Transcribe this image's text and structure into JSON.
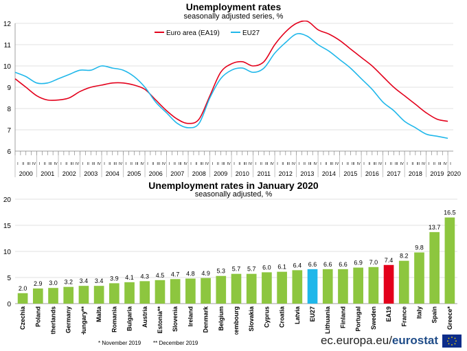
{
  "top": {
    "title": "Unemployment rates",
    "subtitle": "seasonally adjusted series, %"
  },
  "bottom": {
    "title": "Unemployment rates in January 2020",
    "subtitle": "seasonally adjusted, %"
  },
  "footnotes": {
    "nov": "*   November 2019",
    "dec": "** December 2019"
  },
  "brand": {
    "prefix": "ec.europa.eu/",
    "name": "eurostat"
  },
  "colors": {
    "ea19": "#e3001b",
    "eu27": "#1fb7ea",
    "bar": "#8dc63f",
    "eu27_bar": "#1fb7ea",
    "ea19_bar": "#e3001b"
  },
  "chart_data": [
    {
      "type": "line",
      "title": "Unemployment rates",
      "subtitle": "seasonally adjusted series, %",
      "ylim": [
        6,
        12
      ],
      "yticks": [
        6,
        7,
        8,
        9,
        10,
        11,
        12
      ],
      "x_years": [
        "2000",
        "2001",
        "2002",
        "2003",
        "2004",
        "2005",
        "2006",
        "2007",
        "2008",
        "2009",
        "2010",
        "2011",
        "2012",
        "2013",
        "2014",
        "2015",
        "2016",
        "2017",
        "2018",
        "2019",
        "2020"
      ],
      "quarter_labels": [
        "I",
        "II",
        "III",
        "IV"
      ],
      "legend_position": "top-center",
      "series": [
        {
          "name": "Euro area (EA19)",
          "color": "#e3001b",
          "points": [
            [
              2000.0,
              9.4
            ],
            [
              2000.5,
              9.0
            ],
            [
              2001.0,
              8.6
            ],
            [
              2001.5,
              8.4
            ],
            [
              2002.0,
              8.4
            ],
            [
              2002.5,
              8.5
            ],
            [
              2003.0,
              8.8
            ],
            [
              2003.5,
              9.0
            ],
            [
              2004.0,
              9.1
            ],
            [
              2004.5,
              9.2
            ],
            [
              2005.0,
              9.2
            ],
            [
              2005.5,
              9.1
            ],
            [
              2006.0,
              8.9
            ],
            [
              2006.5,
              8.4
            ],
            [
              2007.0,
              7.9
            ],
            [
              2007.5,
              7.5
            ],
            [
              2008.0,
              7.3
            ],
            [
              2008.5,
              7.5
            ],
            [
              2009.0,
              8.6
            ],
            [
              2009.5,
              9.7
            ],
            [
              2010.0,
              10.1
            ],
            [
              2010.5,
              10.2
            ],
            [
              2011.0,
              10.0
            ],
            [
              2011.5,
              10.2
            ],
            [
              2012.0,
              11.0
            ],
            [
              2012.5,
              11.6
            ],
            [
              2013.0,
              12.0
            ],
            [
              2013.5,
              12.1
            ],
            [
              2014.0,
              11.7
            ],
            [
              2014.5,
              11.5
            ],
            [
              2015.0,
              11.2
            ],
            [
              2015.5,
              10.8
            ],
            [
              2016.0,
              10.4
            ],
            [
              2016.5,
              10.0
            ],
            [
              2017.0,
              9.5
            ],
            [
              2017.5,
              9.0
            ],
            [
              2018.0,
              8.6
            ],
            [
              2018.5,
              8.2
            ],
            [
              2019.0,
              7.8
            ],
            [
              2019.5,
              7.5
            ],
            [
              2020.0,
              7.4
            ]
          ]
        },
        {
          "name": "EU27",
          "color": "#1fb7ea",
          "points": [
            [
              2000.0,
              9.7
            ],
            [
              2000.5,
              9.5
            ],
            [
              2001.0,
              9.2
            ],
            [
              2001.5,
              9.2
            ],
            [
              2002.0,
              9.4
            ],
            [
              2002.5,
              9.6
            ],
            [
              2003.0,
              9.8
            ],
            [
              2003.5,
              9.8
            ],
            [
              2004.0,
              10.0
            ],
            [
              2004.5,
              9.9
            ],
            [
              2005.0,
              9.8
            ],
            [
              2005.5,
              9.5
            ],
            [
              2006.0,
              9.0
            ],
            [
              2006.5,
              8.3
            ],
            [
              2007.0,
              7.8
            ],
            [
              2007.5,
              7.3
            ],
            [
              2008.0,
              7.1
            ],
            [
              2008.5,
              7.3
            ],
            [
              2009.0,
              8.5
            ],
            [
              2009.5,
              9.4
            ],
            [
              2010.0,
              9.8
            ],
            [
              2010.5,
              9.9
            ],
            [
              2011.0,
              9.7
            ],
            [
              2011.5,
              9.9
            ],
            [
              2012.0,
              10.6
            ],
            [
              2012.5,
              11.1
            ],
            [
              2013.0,
              11.5
            ],
            [
              2013.5,
              11.4
            ],
            [
              2014.0,
              11.0
            ],
            [
              2014.5,
              10.7
            ],
            [
              2015.0,
              10.3
            ],
            [
              2015.5,
              9.9
            ],
            [
              2016.0,
              9.4
            ],
            [
              2016.5,
              8.9
            ],
            [
              2017.0,
              8.3
            ],
            [
              2017.5,
              7.9
            ],
            [
              2018.0,
              7.4
            ],
            [
              2018.5,
              7.1
            ],
            [
              2019.0,
              6.8
            ],
            [
              2019.5,
              6.7
            ],
            [
              2020.0,
              6.6
            ]
          ]
        }
      ]
    },
    {
      "type": "bar",
      "title": "Unemployment rates in January 2020",
      "subtitle": "seasonally adjusted, %",
      "ylim": [
        0,
        20
      ],
      "yticks": [
        0,
        5,
        10,
        15,
        20
      ],
      "categories": [
        "Czechia",
        "Poland",
        "Netherlands",
        "Germany",
        "Hungary**",
        "Malta",
        "Romania",
        "Bulgaria",
        "Austria",
        "Estonia**",
        "Slovenia",
        "Ireland",
        "Denmark",
        "Belgium",
        "Luxembourg",
        "Slovakia",
        "Cyprus",
        "Croatia",
        "Latvia",
        "EU27",
        "Lithuania",
        "Finland",
        "Portugal",
        "Sweden",
        "EA19",
        "France",
        "Italy",
        "Spain",
        "Greece*"
      ],
      "values": [
        2.0,
        2.9,
        3.0,
        3.2,
        3.4,
        3.4,
        3.9,
        4.1,
        4.3,
        4.5,
        4.7,
        4.8,
        4.9,
        5.3,
        5.7,
        5.7,
        6.0,
        6.1,
        6.4,
        6.6,
        6.6,
        6.6,
        6.9,
        7.0,
        7.4,
        8.2,
        9.8,
        13.7,
        16.5
      ],
      "value_labels": [
        "2.0",
        "2.9",
        "3.0",
        "3.2",
        "3.4",
        "3.4",
        "3.9",
        "4.1",
        "4.3",
        "4.5",
        "4.7",
        "4.8",
        "4.9",
        "5.3",
        "5.7",
        "5.7",
        "6.0",
        "6.1",
        "6.4",
        "6.6",
        "6.6",
        "6.6",
        "6.9",
        "7.0",
        "7.4",
        "8.2",
        "9.8",
        "13.7",
        "16.5"
      ],
      "highlight": {
        "EU27": "#1fb7ea",
        "EA19": "#e3001b"
      }
    }
  ]
}
